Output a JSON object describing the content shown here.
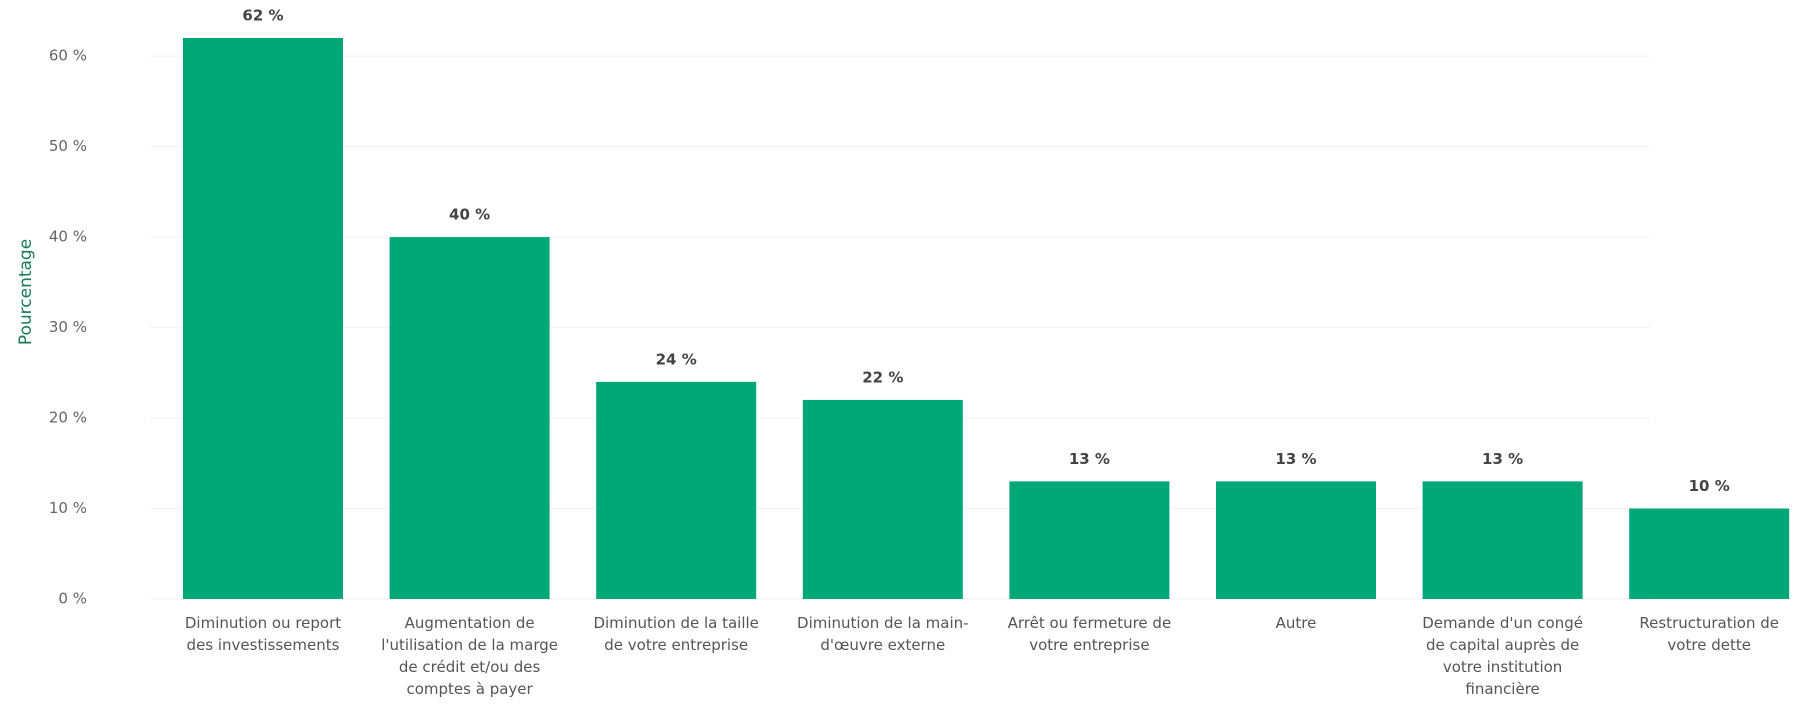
{
  "chart_data": {
    "type": "bar",
    "y_label": "Pourcentage",
    "categories": [
      "Diminution ou report des investissements",
      "Augmentation de l'utilisation de la marge de crédit et/ou des comptes à payer",
      "Diminution de la taille de votre entreprise",
      "Diminution de la main-d'œuvre externe",
      "Arrêt ou fermeture de votre entreprise",
      "Autre",
      "Demande d'un congé de capital auprès de votre institution financière",
      "Restructuration de votre dette"
    ],
    "values": [
      62,
      40,
      24,
      22,
      13,
      13,
      13,
      10
    ],
    "value_labels": [
      "62 %",
      "40 %",
      "24 %",
      "22 %",
      "13 %",
      "13 %",
      "13 %",
      "10 %"
    ],
    "color": "#00a878",
    "ylim": [
      0,
      62
    ],
    "yticks": [
      {
        "value": 0,
        "label": "0 %"
      },
      {
        "value": 10,
        "label": "10 %"
      },
      {
        "value": 20,
        "label": "20 %"
      },
      {
        "value": 30,
        "label": "30 %"
      },
      {
        "value": 40,
        "label": "40 %"
      },
      {
        "value": 50,
        "label": "50 %"
      },
      {
        "value": 60,
        "label": "60 %"
      }
    ],
    "grid": true
  }
}
